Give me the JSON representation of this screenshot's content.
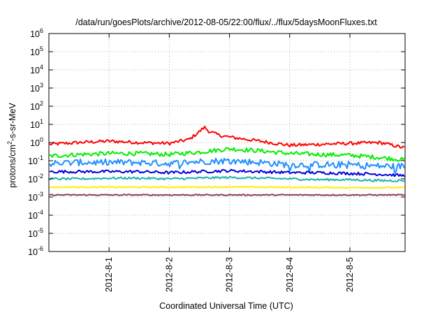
{
  "chart_data": {
    "type": "line",
    "title": "/data/run/goesPlots/archive/2012-08-05/22:00/flux/../flux/5daysMoonFluxes.txt",
    "xlabel": "Coordinated Universal Time (UTC)",
    "ylabel": "protons/cm2-s-sr-MeV",
    "ylabel_parts": {
      "pre": "protons/cm",
      "sup": "2",
      "post": "-s-sr-MeV"
    },
    "y_scale": "log",
    "ylim": [
      1e-06,
      1000000.0
    ],
    "y_ticks": [
      {
        "value": 1e-06,
        "base": "10",
        "exp": "-6"
      },
      {
        "value": 1e-05,
        "base": "10",
        "exp": "-5"
      },
      {
        "value": 0.0001,
        "base": "10",
        "exp": "-4"
      },
      {
        "value": 0.001,
        "base": "10",
        "exp": "-3"
      },
      {
        "value": 0.01,
        "base": "10",
        "exp": "-2"
      },
      {
        "value": 0.1,
        "base": "10",
        "exp": "-1"
      },
      {
        "value": 1,
        "base": "10",
        "exp": "0"
      },
      {
        "value": 10.0,
        "base": "10",
        "exp": "1"
      },
      {
        "value": 100.0,
        "base": "10",
        "exp": "2"
      },
      {
        "value": 1000.0,
        "base": "10",
        "exp": "3"
      },
      {
        "value": 10000.0,
        "base": "10",
        "exp": "4"
      },
      {
        "value": 100000.0,
        "base": "10",
        "exp": "5"
      },
      {
        "value": 1000000.0,
        "base": "10",
        "exp": "6"
      }
    ],
    "xlim": [
      "2012-07-31T00:00",
      "2012-08-05T22:00"
    ],
    "x_ticks": [
      "2012-8-1",
      "2012-8-2",
      "2012-8-3",
      "2012-8-4",
      "2012-8-5"
    ],
    "x_tick_dates": [
      "2012-08-01T00:00",
      "2012-08-02T00:00",
      "2012-08-03T00:00",
      "2012-08-04T00:00",
      "2012-08-05T00:00"
    ],
    "grid": true,
    "legend": "none",
    "series": [
      {
        "color": "#ff0000",
        "x": [
          "2012-07-31T00:00",
          "2012-07-31T12:00",
          "2012-08-01T00:00",
          "2012-08-01T12:00",
          "2012-08-02T00:00",
          "2012-08-02T08:00",
          "2012-08-02T12:00",
          "2012-08-02T14:00",
          "2012-08-02T16:00",
          "2012-08-02T20:00",
          "2012-08-03T00:00",
          "2012-08-03T12:00",
          "2012-08-04T00:00",
          "2012-08-04T12:00",
          "2012-08-05T00:00",
          "2012-08-05T12:00",
          "2012-08-05T22:00"
        ],
        "y": [
          0.8,
          1.0,
          1.2,
          1.0,
          0.9,
          1.5,
          4.0,
          7.0,
          4.0,
          2.5,
          2.0,
          1.2,
          0.7,
          0.8,
          0.9,
          1.0,
          0.5
        ]
      },
      {
        "color": "#00ee00",
        "x": [
          "2012-07-31T00:00",
          "2012-07-31T12:00",
          "2012-08-01T00:00",
          "2012-08-01T12:00",
          "2012-08-02T00:00",
          "2012-08-02T12:00",
          "2012-08-03T00:00",
          "2012-08-03T12:00",
          "2012-08-04T00:00",
          "2012-08-04T12:00",
          "2012-08-05T00:00",
          "2012-08-05T12:00",
          "2012-08-05T22:00"
        ],
        "y": [
          0.18,
          0.22,
          0.25,
          0.25,
          0.22,
          0.3,
          0.45,
          0.35,
          0.25,
          0.22,
          0.2,
          0.15,
          0.11
        ]
      },
      {
        "color": "#1e90ff",
        "x": [
          "2012-07-31T00:00",
          "2012-07-31T12:00",
          "2012-08-01T00:00",
          "2012-08-01T12:00",
          "2012-08-02T00:00",
          "2012-08-02T12:00",
          "2012-08-03T00:00",
          "2012-08-03T12:00",
          "2012-08-04T00:00",
          "2012-08-04T12:00",
          "2012-08-05T00:00",
          "2012-08-05T12:00",
          "2012-08-05T22:00"
        ],
        "y": [
          0.07,
          0.08,
          0.08,
          0.08,
          0.07,
          0.09,
          0.1,
          0.08,
          0.06,
          0.06,
          0.06,
          0.05,
          0.05
        ]
      },
      {
        "color": "#0000dd",
        "x": [
          "2012-07-31T00:00",
          "2012-07-31T12:00",
          "2012-08-01T00:00",
          "2012-08-01T12:00",
          "2012-08-02T00:00",
          "2012-08-02T12:00",
          "2012-08-03T00:00",
          "2012-08-03T12:00",
          "2012-08-04T00:00",
          "2012-08-04T12:00",
          "2012-08-05T00:00",
          "2012-08-05T12:00",
          "2012-08-05T22:00"
        ],
        "y": [
          0.025,
          0.025,
          0.025,
          0.025,
          0.022,
          0.025,
          0.028,
          0.025,
          0.022,
          0.022,
          0.02,
          0.018,
          0.015
        ]
      },
      {
        "color": "#20b2aa",
        "x": [
          "2012-07-31T00:00",
          "2012-07-31T12:00",
          "2012-08-01T00:00",
          "2012-08-01T12:00",
          "2012-08-02T00:00",
          "2012-08-02T12:00",
          "2012-08-03T00:00",
          "2012-08-03T12:00",
          "2012-08-04T00:00",
          "2012-08-04T12:00",
          "2012-08-05T00:00",
          "2012-08-05T12:00",
          "2012-08-05T22:00"
        ],
        "y": [
          0.01,
          0.01,
          0.011,
          0.011,
          0.01,
          0.011,
          0.012,
          0.011,
          0.01,
          0.009,
          0.009,
          0.008,
          0.008
        ]
      },
      {
        "color": "#ffee00",
        "x": [
          "2012-07-31T00:00",
          "2012-08-01T00:00",
          "2012-08-02T00:00",
          "2012-08-03T00:00",
          "2012-08-04T00:00",
          "2012-08-05T00:00",
          "2012-08-05T22:00"
        ],
        "y": [
          0.0035,
          0.0035,
          0.0035,
          0.0036,
          0.0034,
          0.0033,
          0.0033
        ]
      },
      {
        "color": "#8b3a62",
        "x": [
          "2012-07-31T00:00",
          "2012-08-01T00:00",
          "2012-08-02T00:00",
          "2012-08-03T00:00",
          "2012-08-04T00:00",
          "2012-08-05T00:00",
          "2012-08-05T22:00"
        ],
        "y": [
          0.0013,
          0.0013,
          0.0013,
          0.0013,
          0.0013,
          0.0013,
          0.0013
        ]
      }
    ]
  }
}
